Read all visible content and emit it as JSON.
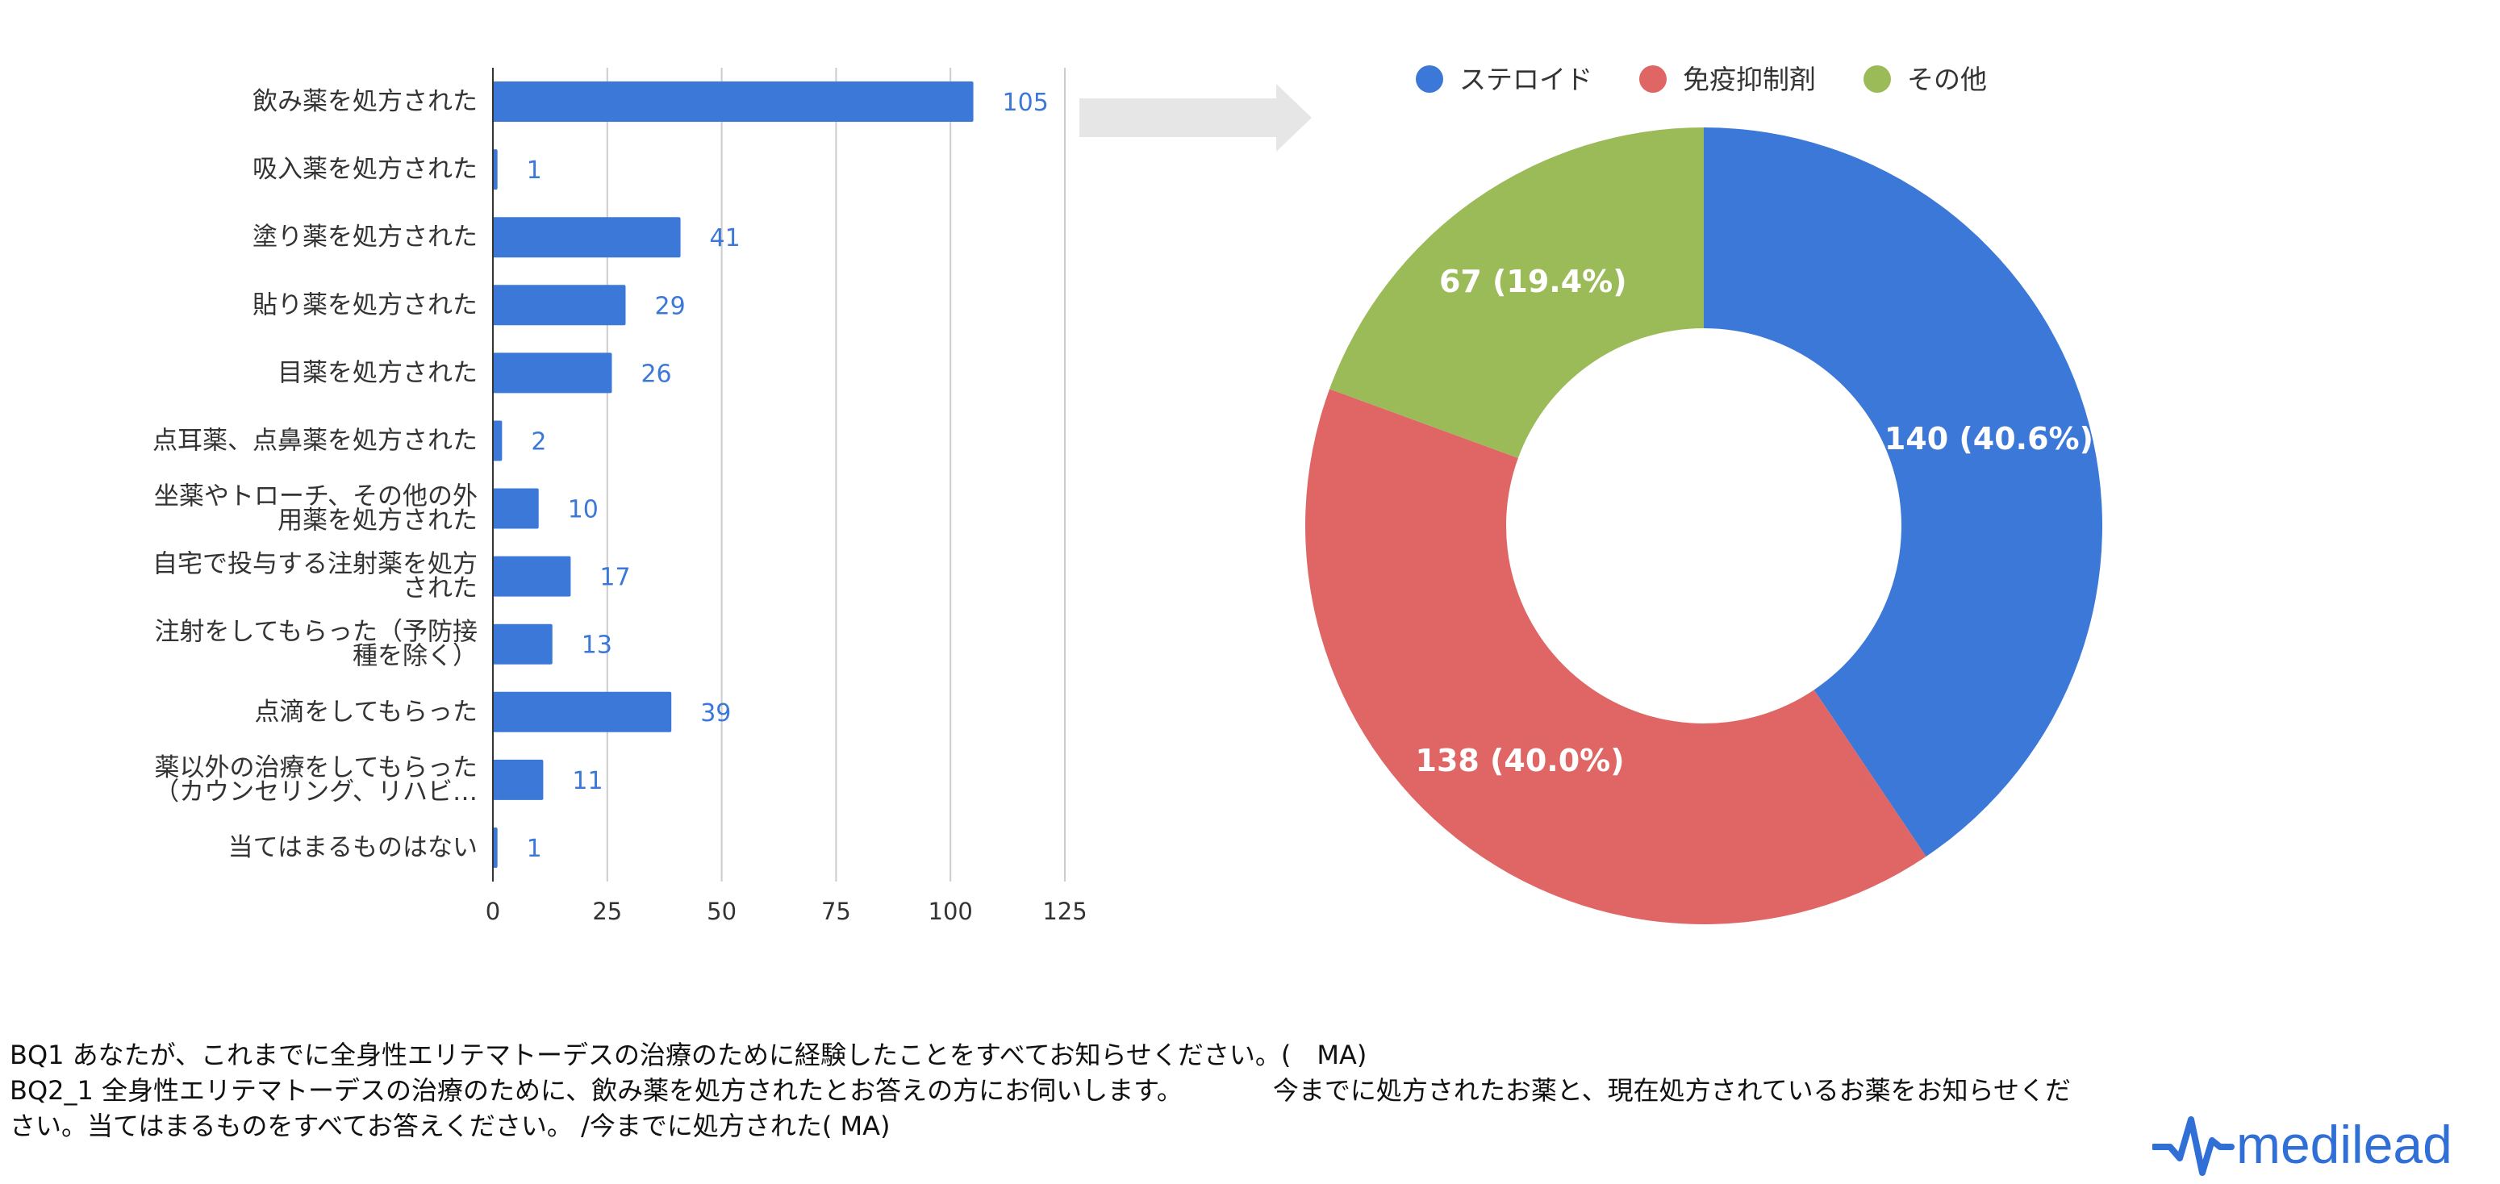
{
  "chart_data": [
    {
      "type": "bar",
      "orientation": "horizontal",
      "categories": [
        "飲み薬を処方された",
        "吸入薬を処方された",
        "塗り薬を処方された",
        "貼り薬を処方された",
        "目薬を処方された",
        "点耳薬、点鼻薬を処方された",
        "坐薬やトローチ、その他の外用薬を処方された",
        "自宅で投与する注射薬を処方された",
        "注射をしてもらった（予防接種を除く）",
        "点滴をしてもらった",
        "薬以外の治療をしてもらった（カウンセリング、リハビ…",
        "当てはまるものはない"
      ],
      "category_lines": [
        [
          "飲み薬を処方された"
        ],
        [
          "吸入薬を処方された"
        ],
        [
          "塗り薬を処方された"
        ],
        [
          "貼り薬を処方された"
        ],
        [
          "目薬を処方された"
        ],
        [
          "点耳薬、点鼻薬を処方された"
        ],
        [
          "坐薬やトローチ、その他の外",
          "用薬を処方された"
        ],
        [
          "自宅で投与する注射薬を処方",
          "された"
        ],
        [
          "注射をしてもらった（予防接",
          "種を除く）"
        ],
        [
          "点滴をしてもらった"
        ],
        [
          "薬以外の治療をしてもらった",
          "（カウンセリング、リハビ…"
        ],
        [
          "当てはまるものはない"
        ]
      ],
      "values": [
        105,
        1,
        41,
        29,
        26,
        2,
        10,
        17,
        13,
        39,
        11,
        1
      ],
      "value_labels": [
        "105",
        "1",
        "41",
        "29",
        "26",
        "2",
        "10",
        "17",
        "13",
        "39",
        "11",
        "1"
      ],
      "xlim": [
        0,
        125
      ],
      "xticks": [
        "0",
        "25",
        "50",
        "75",
        "100",
        "125"
      ],
      "grid": true,
      "color": "#3c78d8",
      "label_color": "#3c78d8"
    },
    {
      "type": "pie",
      "donut": true,
      "legend_position": "top",
      "slices": [
        {
          "name": "ステロイド",
          "value": 140,
          "label": "140  (40.6%)",
          "color": "#3c78d8"
        },
        {
          "name": "免疫抑制剤",
          "value": 138,
          "label": "138  (40.0%)",
          "color": "#e06666"
        },
        {
          "name": "その他",
          "value": 67,
          "label": "67  (19.4%)",
          "color": "#9bbb59"
        }
      ]
    }
  ],
  "arrow_color": "#e6e6e6",
  "footnote": {
    "line1": "BQ1  あなたが、これまでに全身性エリテマトーデスの治療のために経験したことをすべてお知らせください。(　MA)",
    "line2": "BQ2_1 全身性エリテマトーデスの治療のために、飲み薬を処方されたとお答えの方にお伺いします。　　　　今までに処方されたお薬と、現在処方されているお薬をお知らせくだ",
    "line3": "さい。当てはまるものをすべてお答えください。 /今までに処方された( MA)"
  },
  "logo": {
    "text": "medilead",
    "icon": "medilead-pulse-logo-icon",
    "color": "#2f6fd6"
  }
}
